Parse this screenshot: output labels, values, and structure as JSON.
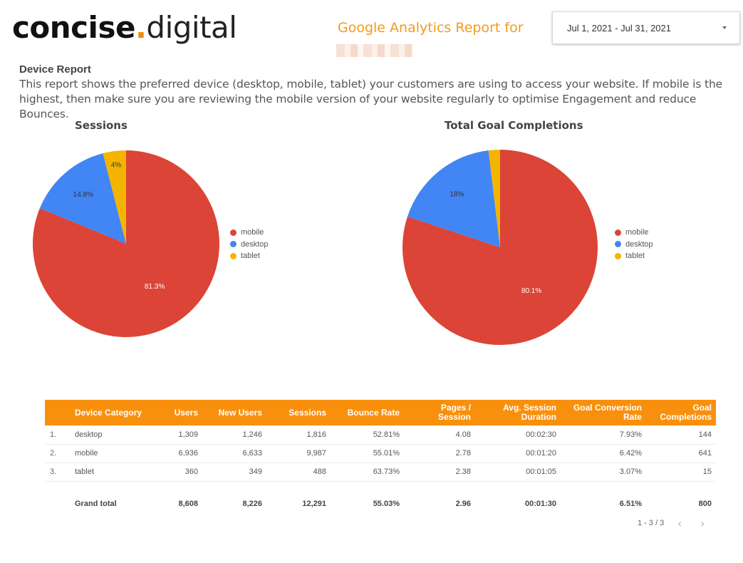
{
  "header": {
    "logo": {
      "bold": "concise",
      "dot": ".",
      "light": "digital"
    },
    "report_title": "Google Analytics Report for",
    "date_range": "Jul 1, 2021 - Jul 31, 2021"
  },
  "description": {
    "title": "Device Report",
    "text": "This report shows the preferred device (desktop, mobile, tablet) your customers are using to access your website. If mobile is the highest, then make sure you are reviewing the mobile version of your website regularly to optimise Engagement and reduce Bounces."
  },
  "colors": {
    "mobile": "#db4437",
    "desktop": "#4285f4",
    "tablet": "#f4b400",
    "accent": "#f9900d"
  },
  "chart_data": [
    {
      "type": "pie",
      "title": "Sessions",
      "labels": [
        "mobile",
        "desktop",
        "tablet"
      ],
      "values": [
        81.3,
        14.8,
        4.0
      ],
      "value_labels": [
        "81.3%",
        "14.8%",
        "4%"
      ],
      "legend_position": "right"
    },
    {
      "type": "pie",
      "title": "Total Goal Completions",
      "labels": [
        "mobile",
        "desktop",
        "tablet"
      ],
      "values": [
        80.1,
        18.0,
        1.9
      ],
      "value_labels": [
        "80.1%",
        "18%",
        ""
      ],
      "legend_position": "right"
    }
  ],
  "table": {
    "headers": [
      "Device Category",
      "Users",
      "New Users",
      "Sessions",
      "Bounce Rate",
      "Pages / Session",
      "Avg. Session Duration",
      "Goal Conversion Rate",
      "Goal Completions"
    ],
    "rows": [
      {
        "index": "1.",
        "cells": [
          "desktop",
          "1,309",
          "1,246",
          "1,816",
          "52.81%",
          "4.08",
          "00:02:30",
          "7.93%",
          "144"
        ]
      },
      {
        "index": "2.",
        "cells": [
          "mobile",
          "6,936",
          "6,633",
          "9,987",
          "55.01%",
          "2.78",
          "00:01:20",
          "6.42%",
          "641"
        ]
      },
      {
        "index": "3.",
        "cells": [
          "tablet",
          "360",
          "349",
          "488",
          "63.73%",
          "2.38",
          "00:01:05",
          "3.07%",
          "15"
        ]
      }
    ],
    "total": {
      "label": "Grand total",
      "cells": [
        "8,608",
        "8,226",
        "12,291",
        "55.03%",
        "2.96",
        "00:01:30",
        "6.51%",
        "800"
      ]
    },
    "pagination": "1 - 3 / 3"
  }
}
